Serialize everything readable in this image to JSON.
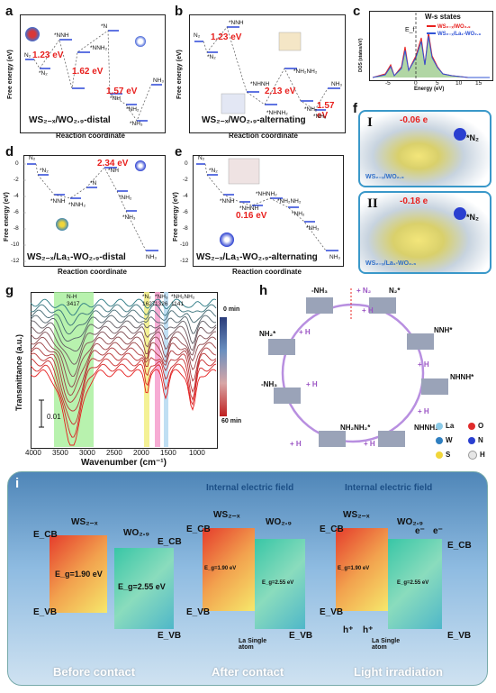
{
  "panels": {
    "a": {
      "letter": "a",
      "title": "WS₂₋ₓ/WO₂.₉-distal",
      "ylabel": "Free energy (eV)",
      "xlabel": "Reaction coordinate",
      "dE1": "1.23 eV",
      "dE2": "1.62 eV",
      "dE3": "1.57 eV",
      "species": [
        "N₂",
        "*N₂",
        "*NNH",
        "*NNH₂",
        "*N",
        "*NH",
        "*NH₂",
        "*NH₃",
        "NH₃"
      ]
    },
    "b": {
      "letter": "b",
      "title": "WS₂₋ₓ/WO₂.₉-alternating",
      "ylabel": "Free energy (eV)",
      "xlabel": "Reaction coordinate",
      "dE1": "1.23 eV",
      "dE2": "2.13 eV",
      "dE3": "1.57 eV",
      "species": [
        "N₂",
        "*N₂",
        "*NNH",
        "*NHNH",
        "*NHNH₂",
        "*NH₂NH₂",
        "*NH₂",
        "*NH₃",
        "NH₃"
      ]
    },
    "c": {
      "letter": "c",
      "legend_title": "W-s states",
      "series1": "WS₂₋ₓ/WO₂.₉",
      "series2": "WS₂₋ₓ/La₁-WO₂.₉",
      "xlabel": "Energy (eV)",
      "ylabel": "DOS (states/eV)",
      "ef": "E_f",
      "xticks": [
        "-5",
        "0",
        "5",
        "10",
        "15"
      ]
    },
    "d": {
      "letter": "d",
      "title": "WS₂₋ₓ/La₁-WO₂.₉-distal",
      "ylabel": "Free energy (eV)",
      "xlabel": "Reaction coordinate",
      "dE1": "2.34 eV",
      "species": [
        "N₂",
        "*N₂",
        "*NNH",
        "*NNH₂",
        "*N",
        "*NH",
        "*NH₂",
        "*NH₃",
        "NH₃"
      ],
      "yticks": [
        "0",
        "-2",
        "-4",
        "-6",
        "-8",
        "-10",
        "-12"
      ]
    },
    "e": {
      "letter": "e",
      "title": "WS₂₋ₓ/La₁-WO₂.₉-alternating",
      "ylabel": "Free energy (eV)",
      "xlabel": "Reaction coordinate",
      "dE1": "0.16 eV",
      "species": [
        "N₂",
        "*N₂",
        "*NNH",
        "*NHNH",
        "*NHNH₂",
        "*NH₂NH₂",
        "*NH₂",
        "*NH₃",
        "NH₃"
      ],
      "yticks": [
        "0",
        "-2",
        "-4",
        "-6",
        "-8",
        "-10",
        "-12"
      ]
    },
    "f": {
      "letter": "f",
      "I": {
        "roman": "I",
        "charge": "-0.06 e",
        "adsorbate": "*N₂",
        "label": "WS₂₋ₓ/WO₂.₉"
      },
      "II": {
        "roman": "II",
        "charge": "-0.18 e",
        "adsorbate": "*N₂",
        "label": "WS₂₋ₓ/La₁-WO₂.₉"
      }
    },
    "g": {
      "letter": "g",
      "ylabel": "Transmittance (a.u.)",
      "xlabel": "Wavenumber (cm⁻¹)",
      "time_top": "0 min",
      "time_bottom": "60 min",
      "scale": "0.01",
      "bands": [
        {
          "label": "N-H",
          "sub": "3417"
        },
        {
          "label": "*N₂",
          "sub": "1627"
        },
        {
          "label": "*NH₃",
          "sub": "1326"
        },
        {
          "label": "*NH₂NH₂",
          "sub": "1141"
        }
      ],
      "xticks": [
        "4000",
        "3500",
        "3000",
        "2500",
        "2000",
        "1500",
        "1000"
      ]
    },
    "h": {
      "letter": "h",
      "steps": [
        "-NH₃",
        "N₂*",
        "NNH*",
        "NHNH*",
        "NHNH₂*",
        "NH₂NH₂*",
        "-NH₃",
        "NH₂*"
      ],
      "add_N2": "+ N₂",
      "add_H": "+ H",
      "legend": [
        {
          "sym": "La",
          "color": "#8ccbe8"
        },
        {
          "sym": "O",
          "color": "#e02b2b"
        },
        {
          "sym": "W",
          "color": "#2f7fc0"
        },
        {
          "sym": "N",
          "color": "#2a3fd0"
        },
        {
          "sym": "S",
          "color": "#f1d63a"
        },
        {
          "sym": "H",
          "color": "#e6e6e6"
        }
      ]
    },
    "i": {
      "letter": "i",
      "ws": "WS₂₋ₓ",
      "wo": "WO₂.₉",
      "ecb": "E_CB",
      "evb": "E_VB",
      "eg1": "E_g=1.90 eV",
      "eg2": "E_g=2.55 eV",
      "field": "Internal electric field",
      "single": "La Single atom",
      "captions": [
        "Before  contact",
        "After  contact",
        "Light  irradiation"
      ],
      "eminus": "e⁻",
      "hplus": "h⁺"
    }
  },
  "colors": {
    "red": "#e8201e",
    "blue": "#3154d6",
    "box": "#3a98c9"
  }
}
